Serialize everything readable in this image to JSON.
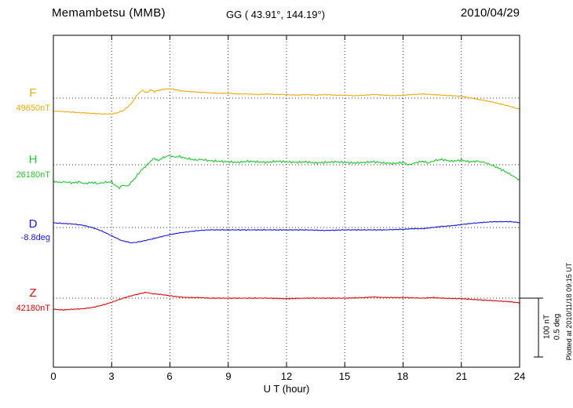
{
  "header": {
    "title": "Memambetsu (MMB)",
    "coords": "GG ( 43.91°, 144.19°)",
    "date": "2010/04/29"
  },
  "footer": {
    "plotted_at": "Plotted at 2010/11/18 09:15 UT"
  },
  "chart_data": {
    "type": "line",
    "title": "Memambetsu (MMB)",
    "station_coords": "GG ( 43.91°, 144.19°)",
    "date": "2010/04/29",
    "xlabel": "U T (hour)",
    "x_range": [
      0,
      24
    ],
    "x_ticks": [
      "0",
      "3",
      "6",
      "9",
      "12",
      "15",
      "18",
      "21",
      "24"
    ],
    "grid": "dotted",
    "legend_position": "left-margin",
    "scale_bar": {
      "nT_label": "100 nT",
      "deg_label": "0.5 deg",
      "nT_value": 100,
      "deg_value": 0.5
    },
    "series": [
      {
        "name": "F",
        "unit": "nT",
        "baseline_label": "49650nT",
        "baseline": 49650,
        "color": "#f5a800",
        "points": [
          [
            0,
            49628
          ],
          [
            0.5,
            49627
          ],
          [
            1,
            49626
          ],
          [
            1.5,
            49625
          ],
          [
            2,
            49624
          ],
          [
            2.5,
            49623
          ],
          [
            3,
            49623
          ],
          [
            3.3,
            49625
          ],
          [
            3.6,
            49629
          ],
          [
            4,
            49640
          ],
          [
            4.2,
            49650
          ],
          [
            4.4,
            49659
          ],
          [
            4.6,
            49663
          ],
          [
            4.8,
            49659
          ],
          [
            5,
            49664
          ],
          [
            5.2,
            49661
          ],
          [
            5.4,
            49663
          ],
          [
            5.7,
            49665
          ],
          [
            6,
            49666
          ],
          [
            6.3,
            49664
          ],
          [
            6.6,
            49662
          ],
          [
            7,
            49661
          ],
          [
            7.5,
            49660
          ],
          [
            8,
            49659
          ],
          [
            8.5,
            49658
          ],
          [
            9,
            49658
          ],
          [
            9.5,
            49657
          ],
          [
            10,
            49657
          ],
          [
            10.5,
            49656
          ],
          [
            11,
            49657
          ],
          [
            11.5,
            49656
          ],
          [
            12,
            49656
          ],
          [
            12.5,
            49655
          ],
          [
            13,
            49656
          ],
          [
            13.5,
            49655
          ],
          [
            14,
            49656
          ],
          [
            14.5,
            49655
          ],
          [
            15,
            49655
          ],
          [
            15.5,
            49654
          ],
          [
            16,
            49655
          ],
          [
            16.5,
            49656
          ],
          [
            17,
            49655
          ],
          [
            17.5,
            49654
          ],
          [
            18,
            49655
          ],
          [
            18.5,
            49656
          ],
          [
            19,
            49657
          ],
          [
            19.5,
            49656
          ],
          [
            20,
            49655
          ],
          [
            20.5,
            49654
          ],
          [
            21,
            49653
          ],
          [
            21.5,
            49650
          ],
          [
            22,
            49647
          ],
          [
            22.5,
            49644
          ],
          [
            23,
            49640
          ],
          [
            23.5,
            49636
          ],
          [
            24,
            49631
          ]
        ]
      },
      {
        "name": "H",
        "unit": "nT",
        "baseline_label": "26180nT",
        "baseline": 26180,
        "color": "#1ec82d",
        "points": [
          [
            0,
            26152
          ],
          [
            0.3,
            26150
          ],
          [
            0.6,
            26151
          ],
          [
            1,
            26149
          ],
          [
            1.3,
            26151
          ],
          [
            1.6,
            26148
          ],
          [
            2,
            26150
          ],
          [
            2.3,
            26148
          ],
          [
            2.6,
            26150
          ],
          [
            3,
            26151
          ],
          [
            3.2,
            26144
          ],
          [
            3.4,
            26141
          ],
          [
            3.6,
            26146
          ],
          [
            3.8,
            26143
          ],
          [
            4,
            26150
          ],
          [
            4.2,
            26157
          ],
          [
            4.4,
            26166
          ],
          [
            4.6,
            26173
          ],
          [
            4.8,
            26179
          ],
          [
            5,
            26186
          ],
          [
            5.2,
            26191
          ],
          [
            5.4,
            26187
          ],
          [
            5.6,
            26191
          ],
          [
            5.8,
            26194
          ],
          [
            6,
            26196
          ],
          [
            6.2,
            26193
          ],
          [
            6.5,
            26194
          ],
          [
            6.8,
            26191
          ],
          [
            7,
            26190
          ],
          [
            7.3,
            26188
          ],
          [
            7.6,
            26189
          ],
          [
            8,
            26187
          ],
          [
            8.5,
            26186
          ],
          [
            9,
            26185
          ],
          [
            9.5,
            26184
          ],
          [
            10,
            26186
          ],
          [
            10.5,
            26185
          ],
          [
            11,
            26184
          ],
          [
            11.5,
            26186
          ],
          [
            12,
            26185
          ],
          [
            12.5,
            26184
          ],
          [
            13,
            26185
          ],
          [
            13.5,
            26183
          ],
          [
            14,
            26184
          ],
          [
            14.5,
            26185
          ],
          [
            15,
            26184
          ],
          [
            15.5,
            26183
          ],
          [
            16,
            26184
          ],
          [
            16.5,
            26185
          ],
          [
            17,
            26183
          ],
          [
            17.5,
            26182
          ],
          [
            18,
            26184
          ],
          [
            18.3,
            26180
          ],
          [
            18.6,
            26183
          ],
          [
            19,
            26186
          ],
          [
            19.3,
            26183
          ],
          [
            19.6,
            26187
          ],
          [
            20,
            26189
          ],
          [
            20.5,
            26186
          ],
          [
            21,
            26188
          ],
          [
            21.4,
            26185
          ],
          [
            21.8,
            26186
          ],
          [
            22.2,
            26184
          ],
          [
            22.6,
            26179
          ],
          [
            23,
            26173
          ],
          [
            23.4,
            26166
          ],
          [
            23.7,
            26160
          ],
          [
            24,
            26154
          ]
        ]
      },
      {
        "name": "D",
        "unit": "deg",
        "baseline_label": "-8.8deg",
        "baseline": -8.8,
        "color": "#1414e6",
        "points": [
          [
            0,
            -8.76
          ],
          [
            0.5,
            -8.765
          ],
          [
            1,
            -8.77
          ],
          [
            1.5,
            -8.78
          ],
          [
            2,
            -8.8
          ],
          [
            2.5,
            -8.83
          ],
          [
            3,
            -8.87
          ],
          [
            3.5,
            -8.91
          ],
          [
            4,
            -8.93
          ],
          [
            4.3,
            -8.925
          ],
          [
            4.6,
            -8.915
          ],
          [
            5,
            -8.9
          ],
          [
            5.5,
            -8.88
          ],
          [
            6,
            -8.86
          ],
          [
            6.5,
            -8.845
          ],
          [
            7,
            -8.835
          ],
          [
            7.5,
            -8.825
          ],
          [
            8,
            -8.82
          ],
          [
            9,
            -8.82
          ],
          [
            10,
            -8.82
          ],
          [
            11,
            -8.82
          ],
          [
            12,
            -8.82
          ],
          [
            13,
            -8.82
          ],
          [
            14,
            -8.825
          ],
          [
            15,
            -8.82
          ],
          [
            16,
            -8.82
          ],
          [
            17,
            -8.82
          ],
          [
            18,
            -8.815
          ],
          [
            18.5,
            -8.81
          ],
          [
            19,
            -8.81
          ],
          [
            19.5,
            -8.8
          ],
          [
            20,
            -8.79
          ],
          [
            20.5,
            -8.785
          ],
          [
            21,
            -8.775
          ],
          [
            21.5,
            -8.765
          ],
          [
            22,
            -8.758
          ],
          [
            22.5,
            -8.752
          ],
          [
            23,
            -8.75
          ],
          [
            23.5,
            -8.75
          ],
          [
            24,
            -8.758
          ]
        ]
      },
      {
        "name": "Z",
        "unit": "nT",
        "baseline_label": "42180nT",
        "baseline": 42180,
        "color": "#e60000",
        "points": [
          [
            0,
            42161
          ],
          [
            0.5,
            42160
          ],
          [
            1,
            42161
          ],
          [
            1.5,
            42162
          ],
          [
            2,
            42164
          ],
          [
            2.5,
            42168
          ],
          [
            3,
            42173
          ],
          [
            3.5,
            42179
          ],
          [
            4,
            42184
          ],
          [
            4.5,
            42188
          ],
          [
            4.8,
            42190
          ],
          [
            5,
            42188
          ],
          [
            5.3,
            42187
          ],
          [
            5.6,
            42186
          ],
          [
            6,
            42184
          ],
          [
            6.5,
            42182
          ],
          [
            7,
            42181
          ],
          [
            7.5,
            42181
          ],
          [
            8,
            42180
          ],
          [
            9,
            42180
          ],
          [
            10,
            42180
          ],
          [
            11,
            42180
          ],
          [
            12,
            42179
          ],
          [
            13,
            42180
          ],
          [
            14,
            42180
          ],
          [
            15,
            42180
          ],
          [
            16,
            42181
          ],
          [
            16.5,
            42182
          ],
          [
            17,
            42181
          ],
          [
            18,
            42181
          ],
          [
            19,
            42180
          ],
          [
            19.5,
            42181
          ],
          [
            20,
            42180
          ],
          [
            21,
            42179
          ],
          [
            22,
            42177
          ],
          [
            23,
            42175
          ],
          [
            23.5,
            42174
          ],
          [
            24,
            42172
          ]
        ]
      }
    ]
  }
}
